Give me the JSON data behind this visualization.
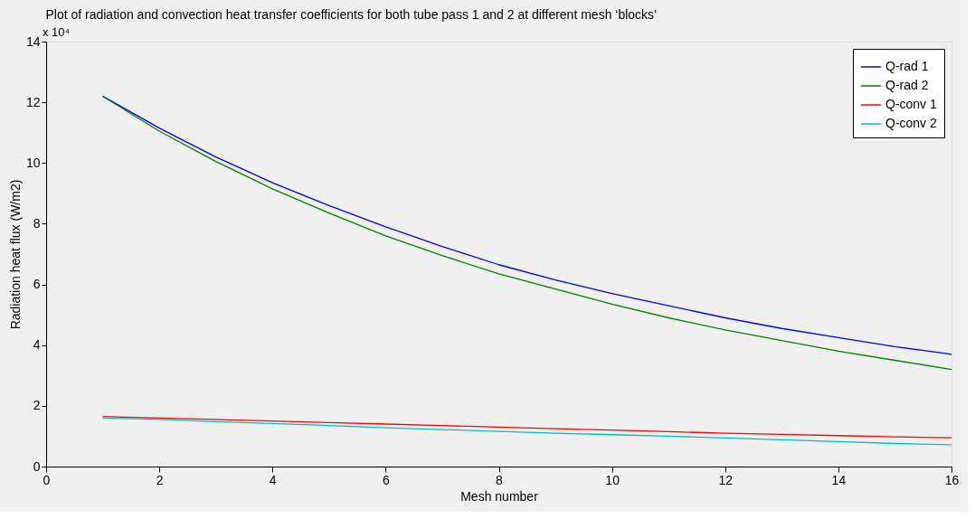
{
  "chart_data": {
    "type": "line",
    "title": "Plot of radiation and convection heat transfer coefficients for both tube pass 1 and 2 at different mesh ‘blocks’",
    "xlabel": "Mesh number",
    "ylabel": "Radiation heat flux (W/m2)",
    "annotations": [
      "x 10⁴"
    ],
    "x": [
      1,
      2,
      3,
      4,
      5,
      6,
      7,
      8,
      9,
      10,
      11,
      12,
      13,
      14,
      15,
      16
    ],
    "series": [
      {
        "name": "Q-rad 1",
        "color": "#0000ff",
        "values": [
          12.2,
          11.15,
          10.2,
          9.35,
          8.6,
          7.9,
          7.25,
          6.65,
          6.15,
          5.7,
          5.3,
          4.9,
          4.55,
          4.25,
          3.95,
          3.7
        ]
      },
      {
        "name": "Q-rad 2",
        "color": "#008000",
        "values": [
          12.2,
          11.05,
          10.05,
          9.15,
          8.35,
          7.6,
          6.95,
          6.35,
          5.85,
          5.35,
          4.9,
          4.5,
          4.15,
          3.8,
          3.5,
          3.2
        ]
      },
      {
        "name": "Q-conv 1",
        "color": "#ff0000",
        "values": [
          1.65,
          1.6,
          1.55,
          1.5,
          1.45,
          1.4,
          1.35,
          1.3,
          1.25,
          1.2,
          1.15,
          1.1,
          1.06,
          1.02,
          0.98,
          0.95
        ]
      },
      {
        "name": "Q-conv 2",
        "color": "#00bfbf",
        "values": [
          1.6,
          1.55,
          1.48,
          1.42,
          1.35,
          1.28,
          1.22,
          1.16,
          1.1,
          1.05,
          1.0,
          0.94,
          0.88,
          0.82,
          0.76,
          0.72
        ]
      }
    ],
    "xlim": [
      0,
      16
    ],
    "xticks": [
      0,
      2,
      4,
      6,
      8,
      10,
      12,
      14,
      16
    ],
    "ylim": [
      0,
      14
    ],
    "yticks": [
      0,
      2,
      4,
      6,
      8,
      10,
      12,
      14
    ],
    "grid": false,
    "legend": "top right",
    "marker": "none",
    "line_style": "solid"
  }
}
